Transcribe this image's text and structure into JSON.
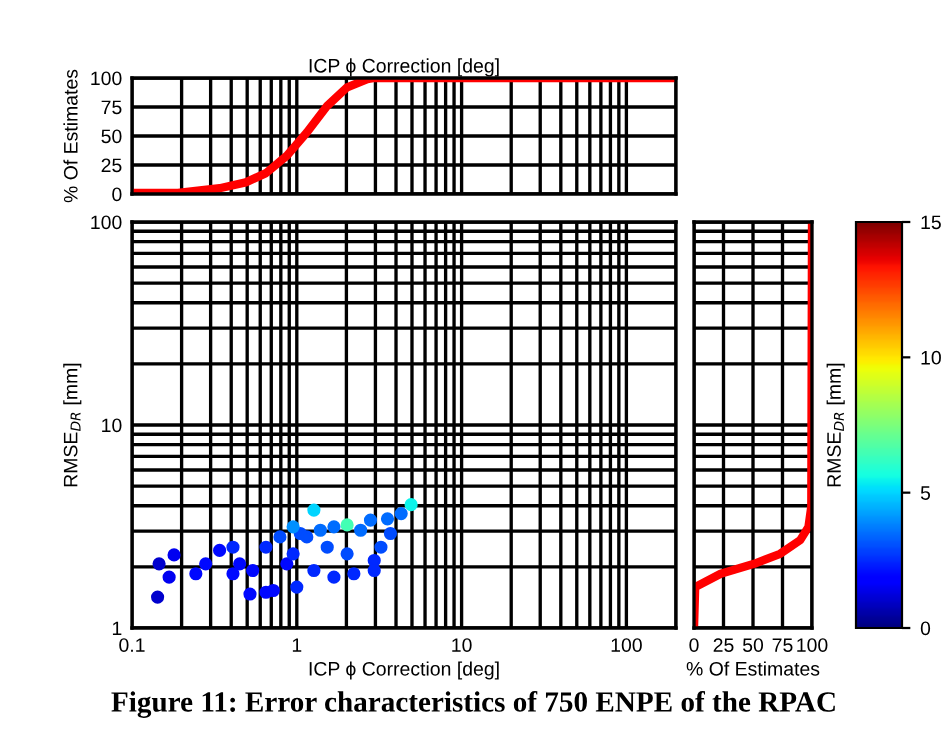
{
  "chart_data": [
    {
      "type": "line",
      "xlabel": "ICP ϕ Correction [deg]",
      "ylabel": "% Of Estimates",
      "log": "x",
      "xlim": [
        0.1,
        200
      ],
      "ylim": [
        0,
        100
      ],
      "xticks": [
        0.1,
        1,
        10,
        100
      ],
      "yticks": [
        0,
        25,
        50,
        75,
        100
      ],
      "tick_labels": "y",
      "grid": true,
      "series": [
        {
          "color": "#ff0000",
          "x": [
            0.1,
            0.19,
            0.34,
            0.49,
            0.65,
            0.87,
            1.15,
            1.53,
            2.02,
            2.68,
            2.95,
            200
          ],
          "values": [
            1,
            1,
            5,
            10,
            18,
            33,
            53,
            76,
            92,
            99,
            100,
            100
          ]
        }
      ]
    },
    {
      "type": "scatter",
      "xlabel": "ICP ϕ Correction [deg]",
      "ylabel": "RMSE$_{DR}$ [mm]",
      "log": "xy",
      "xlim": [
        0.1,
        200
      ],
      "ylim": [
        1,
        100
      ],
      "xticks": [
        0.1,
        1,
        10,
        100
      ],
      "yticks": [
        1,
        10,
        100
      ],
      "grid": true,
      "marker": "circle",
      "clim": [
        0,
        15
      ],
      "cticks": [
        0,
        5,
        10,
        15
      ],
      "clabel": "RMSE$_{DR}$ [mm]",
      "series": [
        {
          "x": [
            0.146,
            0.168,
            0.143,
            0.18,
            0.244,
            0.28,
            0.34,
            0.41,
            0.52,
            0.65,
            0.72,
            1.0,
            1.27,
            2.02,
            4.94,
            3.55,
            4.3,
            3.7,
            2.95,
            3.24,
            0.65,
            0.79,
            1.05,
            1.39,
            1.68,
            2.44,
            0.87,
            1.27,
            1.68,
            2.22,
            2.95,
            0.45,
            0.54,
            0.41,
            0.95,
            1.53,
            2.02,
            1.15,
            2.8,
            0.95
          ],
          "values": [
            2.07,
            1.78,
            1.42,
            2.29,
            1.85,
            2.07,
            2.41,
            2.5,
            1.47,
            1.5,
            1.53,
            1.59,
            3.81,
            3.22,
            4.05,
            3.45,
            3.66,
            2.92,
            2.15,
            2.5,
            2.5,
            2.81,
            2.92,
            3.03,
            3.15,
            3.03,
            2.07,
            1.92,
            1.78,
            1.85,
            1.92,
            2.07,
            1.92,
            1.85,
            2.32,
            2.5,
            2.32,
            2.81,
            3.4,
            3.15
          ],
          "cvalues": [
            1,
            1.5,
            1,
            1.5,
            2,
            2,
            2,
            2.5,
            2,
            2,
            2,
            2.5,
            5,
            6.5,
            5.5,
            3.5,
            3.5,
            3,
            2.5,
            3,
            2.5,
            3,
            3,
            3.5,
            3.5,
            3.5,
            2,
            2.5,
            2.5,
            2.5,
            2.5,
            2,
            2,
            2,
            2.5,
            3,
            3,
            3,
            3.5,
            4
          ]
        }
      ]
    },
    {
      "type": "line",
      "xlabel": "% Of Estimates",
      "log": "y",
      "xlim": [
        0,
        100
      ],
      "ylim": [
        1,
        100
      ],
      "xticks": [
        0,
        25,
        50,
        75,
        100
      ],
      "yticks": [
        1,
        10,
        100
      ],
      "tick_labels": "x",
      "grid": true,
      "series": [
        {
          "color": "#ff0000",
          "x": [
            0,
            1,
            22.6,
            51,
            73,
            90,
            97,
            99.4,
            100
          ],
          "values": [
            1,
            1.59,
            1.85,
            2.07,
            2.32,
            2.71,
            3.15,
            3.96,
            100
          ]
        }
      ]
    },
    {
      "type": "other",
      "annotations": [
        "Figure 11: Error characteristics of 750 ENPE of the RPAC"
      ]
    }
  ]
}
